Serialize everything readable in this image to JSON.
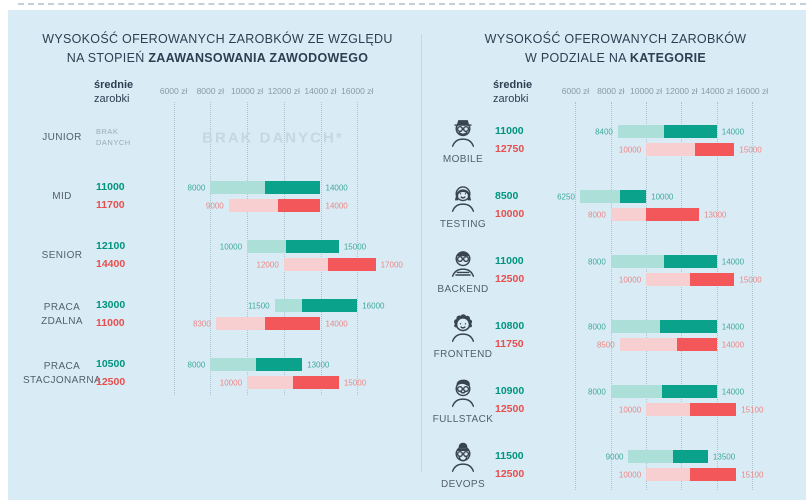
{
  "page": {
    "background": "#d9ecf5",
    "colors": {
      "green_dark": "#0ba28c",
      "green_light": "#abdfd8",
      "red_dark": "#f4575a",
      "red_light": "#f8cfd0",
      "heading": "#2d3e50",
      "tick_gray": "#8b99a4",
      "watermark_gray": "#c6d7df"
    }
  },
  "axis": {
    "label_line1": "średnie",
    "label_line2": "zarobki",
    "unit": "zł",
    "tick_values": [
      6000,
      8000,
      10000,
      12000,
      14000,
      16000
    ],
    "tick_labels": [
      "6000 zł",
      "8000 zł",
      "10000 zł",
      "12000 zł",
      "14000 zł",
      "16000 zł"
    ]
  },
  "chart_data": [
    {
      "type": "bar",
      "title_line1": "WYSOKOŚĆ OFEROWANYCH ZAROBKÓW ZE WZGLĘDU",
      "title_line2_prefix": "NA STOPIEŃ ",
      "title_line2_bold": "ZAAWANSOWANIA ZAWODOWEGO",
      "xlabel": "średnie zarobki",
      "ylabel": "",
      "axis_range": [
        6000,
        16000
      ],
      "grid": true,
      "unit": "zł",
      "rows": [
        {
          "label": "JUNIOR",
          "no_data": "BRAK DANYCH",
          "watermark": "BRAK DANYCH*"
        },
        {
          "label": "MID",
          "green": {
            "avg": 11000,
            "min": 8000,
            "max": 14000
          },
          "red": {
            "avg": 11700,
            "min": 9000,
            "max": 14000
          }
        },
        {
          "label": "SENIOR",
          "green": {
            "avg": 12100,
            "min": 10000,
            "max": 15000
          },
          "red": {
            "avg": 14400,
            "min": 12000,
            "max": 17000
          }
        },
        {
          "label": "PRACA ZDALNA",
          "green": {
            "avg": 13000,
            "min": 11500,
            "max": 16000
          },
          "red": {
            "avg": 11000,
            "min": 8300,
            "max": 14000
          }
        },
        {
          "label": "PRACA STACJONARNA",
          "green": {
            "avg": 10500,
            "min": 8000,
            "max": 13000
          },
          "red": {
            "avg": 12500,
            "min": 10000,
            "max": 15000
          }
        }
      ]
    },
    {
      "type": "bar",
      "title_line1": "WYSOKOŚĆ OFEROWANYCH ZAROBKÓW",
      "title_line2_prefix": "W PODZIALE NA ",
      "title_line2_bold": "KATEGORIE",
      "xlabel": "średnie zarobki",
      "ylabel": "",
      "axis_range": [
        6000,
        16000
      ],
      "grid": true,
      "unit": "zł",
      "rows": [
        {
          "label": "MOBILE",
          "icon": "mobile-avatar-icon",
          "green": {
            "avg": 11000,
            "min": 8400,
            "max": 14000
          },
          "red": {
            "avg": 12750,
            "min": 10000,
            "max": 15000
          }
        },
        {
          "label": "TESTING",
          "icon": "testing-avatar-icon",
          "green": {
            "avg": 8500,
            "min": 6250,
            "max": 10000
          },
          "red": {
            "avg": 10000,
            "min": 8000,
            "max": 13000
          }
        },
        {
          "label": "BACKEND",
          "icon": "backend-avatar-icon",
          "green": {
            "avg": 11000,
            "min": 8000,
            "max": 14000
          },
          "red": {
            "avg": 12500,
            "min": 10000,
            "max": 15000
          }
        },
        {
          "label": "FRONTEND",
          "icon": "frontend-avatar-icon",
          "green": {
            "avg": 10800,
            "min": 8000,
            "max": 14000
          },
          "red": {
            "avg": 11750,
            "min": 8500,
            "max": 14000
          }
        },
        {
          "label": "FULLSTACK",
          "icon": "fullstack-avatar-icon",
          "green": {
            "avg": 10900,
            "min": 8000,
            "max": 14000
          },
          "red": {
            "avg": 12500,
            "min": 10000,
            "max": 15100
          }
        },
        {
          "label": "DEVOPS",
          "icon": "devops-avatar-icon",
          "green": {
            "avg": 11500,
            "min": 9000,
            "max": 13500
          },
          "red": {
            "avg": 12500,
            "min": 10000,
            "max": 15100
          }
        }
      ]
    }
  ]
}
